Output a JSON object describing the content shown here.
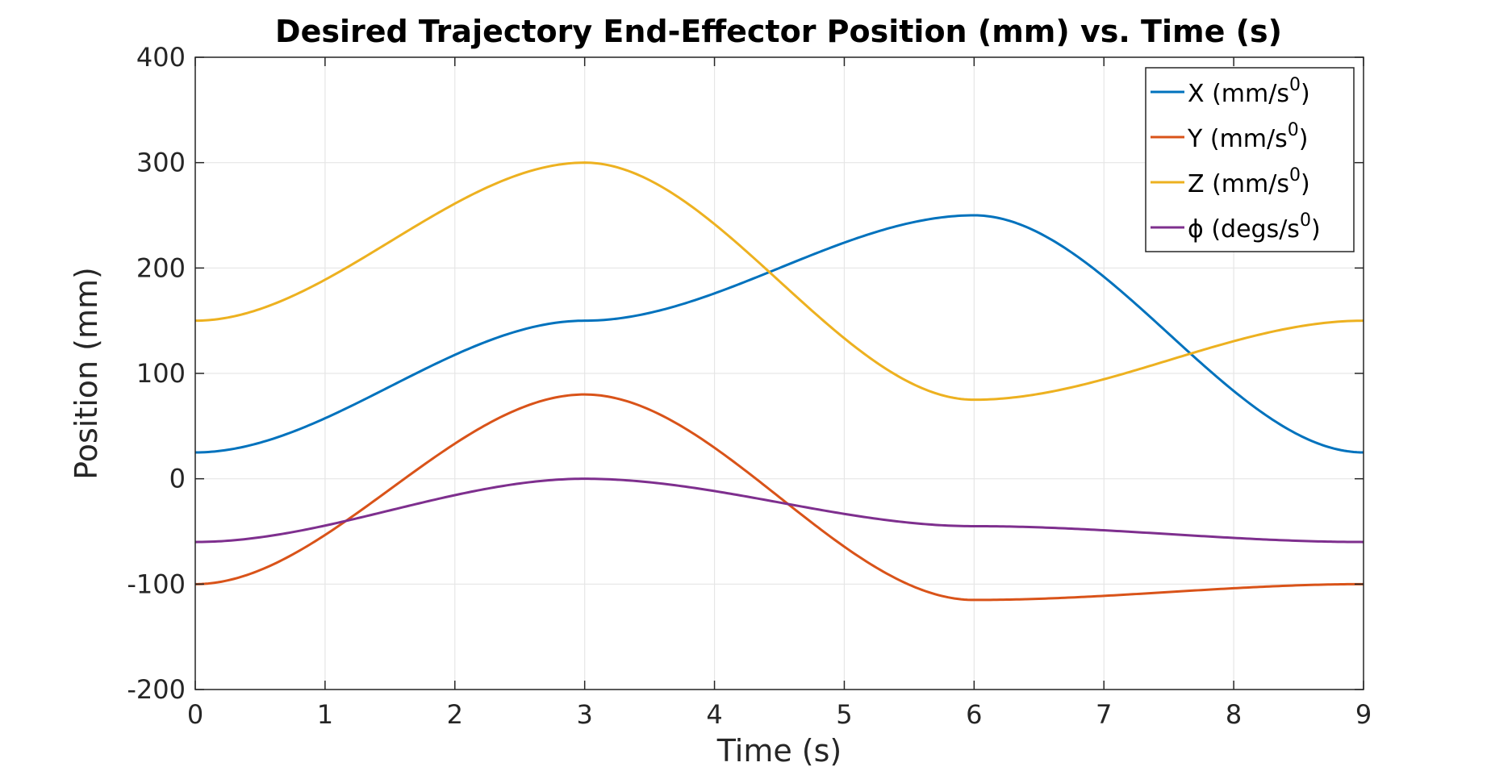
{
  "chart_data": {
    "type": "line",
    "title": "Desired Trajectory End-Effector Position (mm) vs. Time (s)",
    "xlabel": "Time (s)",
    "ylabel": "Position (mm)",
    "xlim": [
      0,
      9
    ],
    "ylim": [
      -200,
      400
    ],
    "xticks": [
      "0",
      "1",
      "2",
      "3",
      "4",
      "5",
      "6",
      "7",
      "8",
      "9"
    ],
    "yticks": [
      "-200",
      "-100",
      "0",
      "100",
      "200",
      "300",
      "400"
    ],
    "grid": true,
    "legend_position": "top-right",
    "series": [
      {
        "name": "X (mm/s",
        "sup": "0",
        "suffix": ")",
        "color": "#0072BD",
        "points": [
          [
            0,
            25
          ],
          [
            3,
            150
          ],
          [
            6,
            250
          ],
          [
            9,
            25
          ]
        ]
      },
      {
        "name": "Y (mm/s",
        "sup": "0",
        "suffix": ")",
        "color": "#D95319",
        "points": [
          [
            0,
            -100
          ],
          [
            3,
            80
          ],
          [
            6,
            -115
          ],
          [
            9,
            -100
          ]
        ]
      },
      {
        "name": "Z (mm/s",
        "sup": "0",
        "suffix": ")",
        "color": "#EDB120",
        "points": [
          [
            0,
            150
          ],
          [
            3,
            300
          ],
          [
            6,
            75
          ],
          [
            9,
            150
          ]
        ]
      },
      {
        "name": "ϕ (degs/s",
        "sup": "0",
        "suffix": ")",
        "color": "#7E2F8E",
        "points": [
          [
            0,
            -60
          ],
          [
            3,
            0
          ],
          [
            6,
            -45
          ],
          [
            9,
            -60
          ]
        ]
      }
    ]
  }
}
